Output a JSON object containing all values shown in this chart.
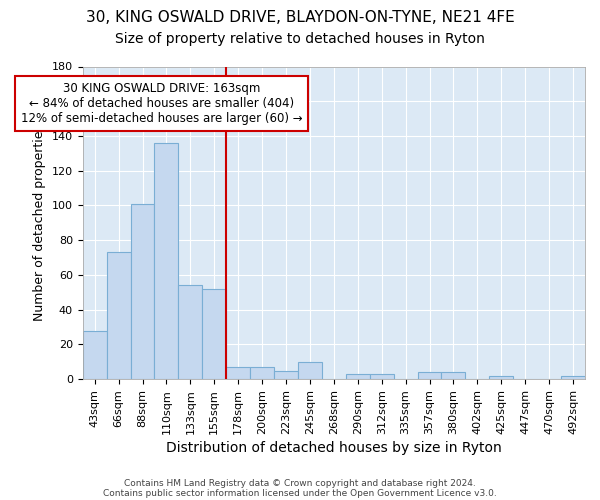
{
  "title1": "30, KING OSWALD DRIVE, BLAYDON-ON-TYNE, NE21 4FE",
  "title2": "Size of property relative to detached houses in Ryton",
  "xlabel": "Distribution of detached houses by size in Ryton",
  "ylabel": "Number of detached properties",
  "categories": [
    "43sqm",
    "66sqm",
    "88sqm",
    "110sqm",
    "133sqm",
    "155sqm",
    "178sqm",
    "200sqm",
    "223sqm",
    "245sqm",
    "268sqm",
    "290sqm",
    "312sqm",
    "335sqm",
    "357sqm",
    "380sqm",
    "402sqm",
    "425sqm",
    "447sqm",
    "470sqm",
    "492sqm"
  ],
  "values": [
    28,
    73,
    101,
    136,
    54,
    52,
    7,
    7,
    5,
    10,
    0,
    3,
    3,
    0,
    4,
    4,
    0,
    2,
    0,
    0,
    2
  ],
  "bar_color": "#c5d8ef",
  "bar_edge_color": "#7aaed4",
  "vline_color": "#cc0000",
  "ylim": [
    0,
    180
  ],
  "yticks": [
    0,
    20,
    40,
    60,
    80,
    100,
    120,
    140,
    160,
    180
  ],
  "annotation_text": "30 KING OSWALD DRIVE: 163sqm\n← 84% of detached houses are smaller (404)\n12% of semi-detached houses are larger (60) →",
  "annotation_box_color": "white",
  "annotation_box_edge": "#cc0000",
  "footer1": "Contains HM Land Registry data © Crown copyright and database right 2024.",
  "footer2": "Contains public sector information licensed under the Open Government Licence v3.0.",
  "bg_color": "#ffffff",
  "plot_bg_color": "#dce9f5",
  "grid_color": "#ffffff",
  "title1_fontsize": 11,
  "title2_fontsize": 10,
  "xlabel_fontsize": 10,
  "ylabel_fontsize": 9,
  "tick_fontsize": 8,
  "annot_fontsize": 8.5
}
